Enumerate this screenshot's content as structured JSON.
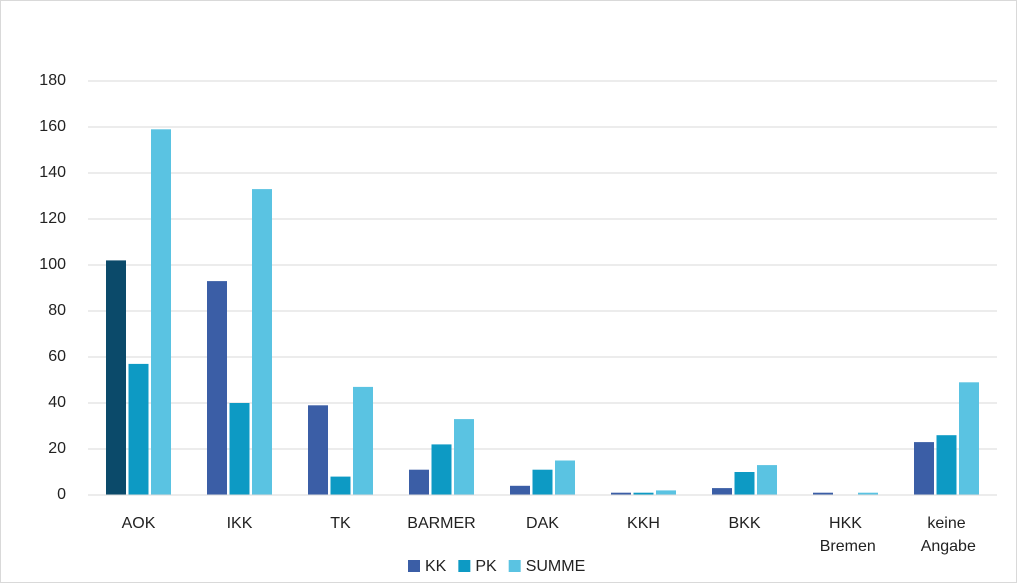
{
  "chart_data": {
    "type": "bar",
    "categories": [
      "AOK",
      "IKK",
      "TK",
      "BARMER",
      "DAK",
      "KKH",
      "BKK",
      "HKK Bremen",
      "keine Angabe"
    ],
    "series": [
      {
        "name": "KK",
        "color": "#3b5ea6",
        "point_colors": {
          "0": "#0b4a6a"
        },
        "values": [
          102,
          93,
          39,
          11,
          4,
          1,
          3,
          1,
          23
        ]
      },
      {
        "name": "PK",
        "color": "#0d9ac4",
        "values": [
          57,
          40,
          8,
          22,
          11,
          1,
          10,
          0,
          26
        ]
      },
      {
        "name": "SUMME",
        "color": "#5ac3e2",
        "values": [
          159,
          133,
          47,
          33,
          15,
          2,
          13,
          1,
          49
        ]
      }
    ],
    "ylim": [
      0,
      180
    ],
    "yticks": [
      0,
      20,
      40,
      60,
      80,
      100,
      120,
      140,
      160,
      180
    ],
    "grid": true,
    "legend": "bottom"
  }
}
